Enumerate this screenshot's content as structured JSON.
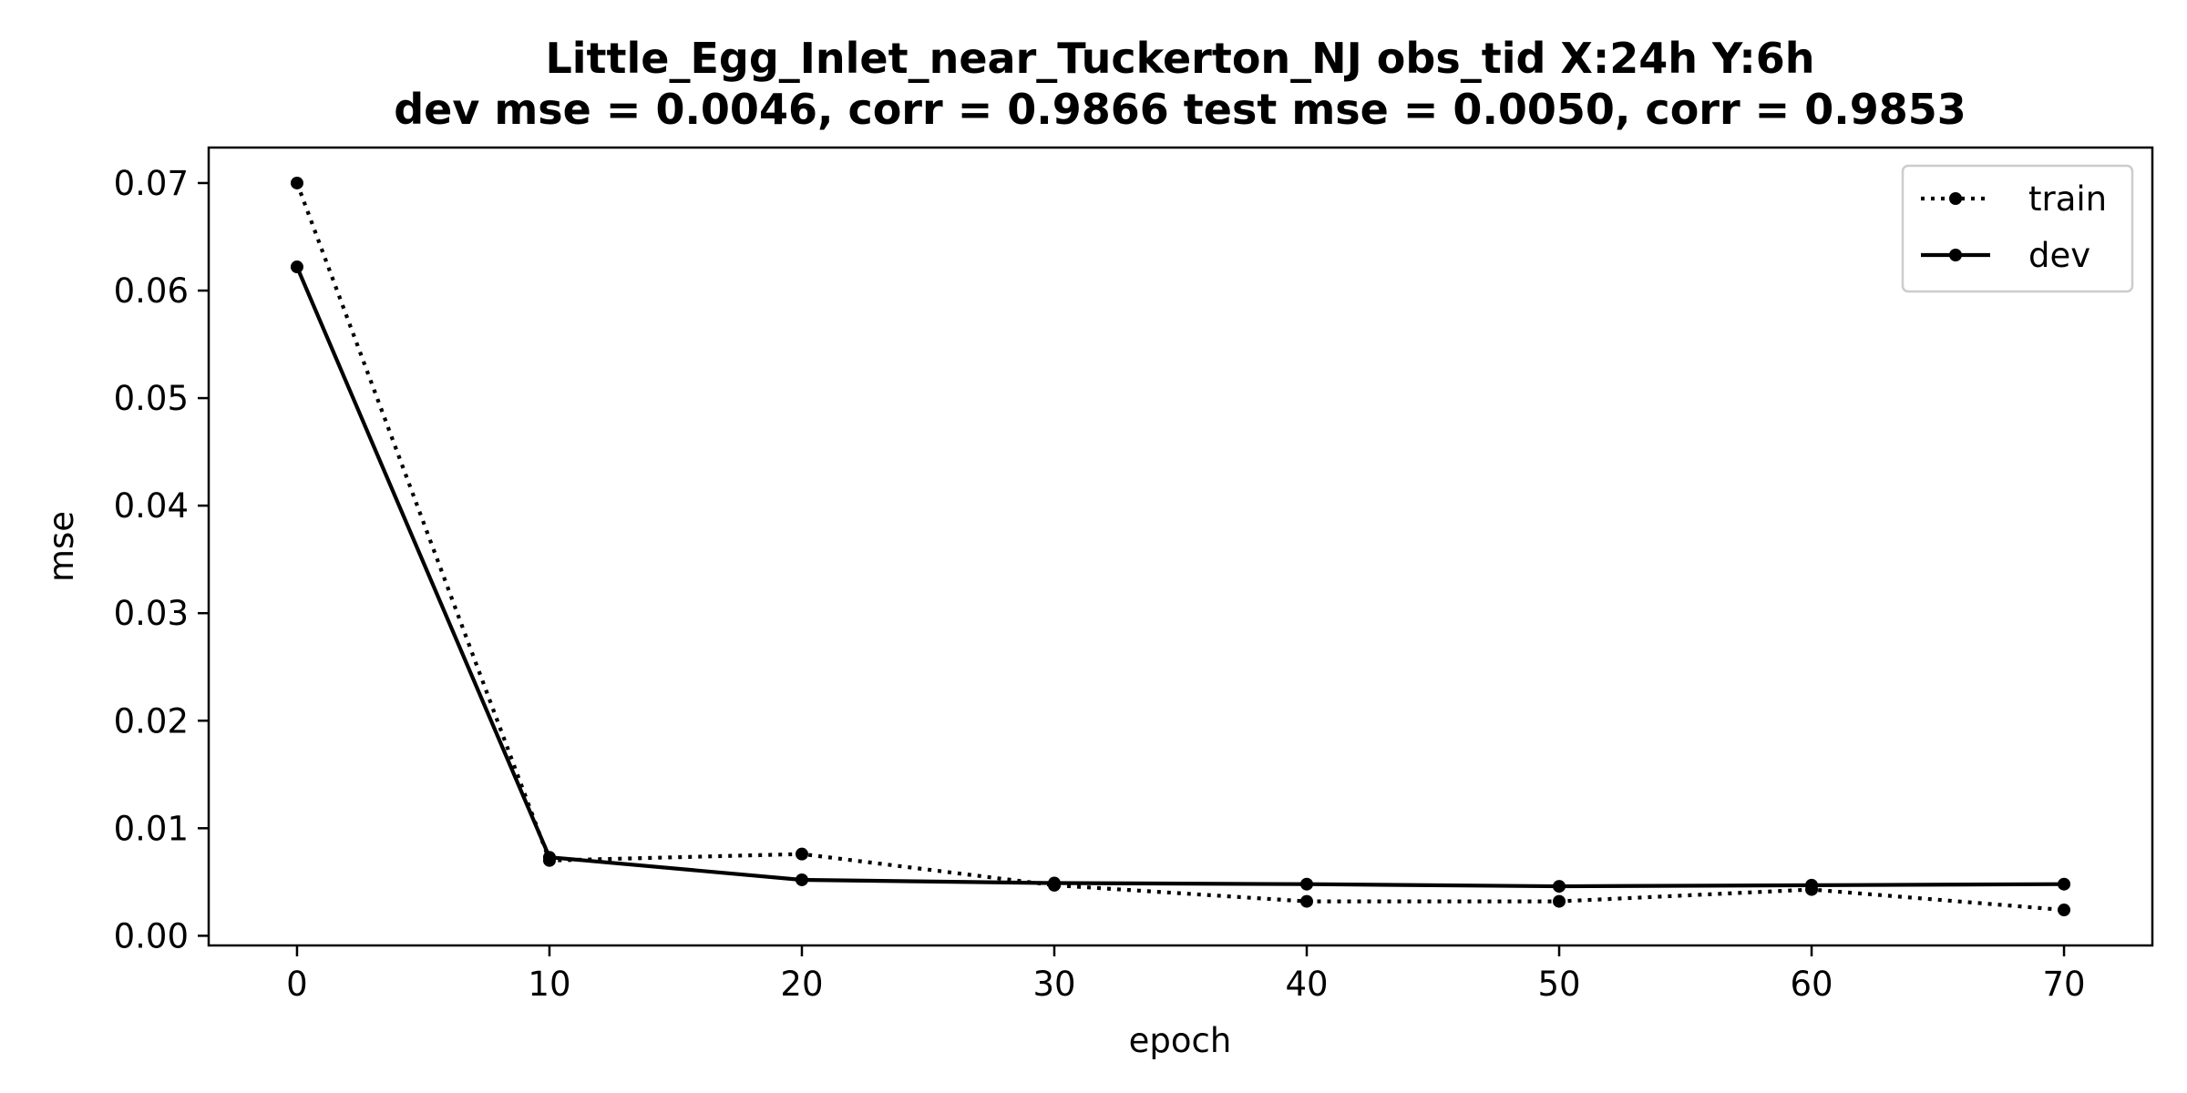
{
  "chart_data": {
    "type": "line",
    "title_line1": "Little_Egg_Inlet_near_Tuckerton_NJ   obs_tid   X:24h   Y:6h",
    "title_line2": "dev mse = 0.0046, corr = 0.9866   test mse = 0.0050, corr = 0.9853",
    "xlabel": "epoch",
    "ylabel": "mse",
    "xlim": [
      -3.5,
      73.5
    ],
    "ylim": [
      -0.0009,
      0.0733
    ],
    "xticks": [
      0,
      10,
      20,
      30,
      40,
      50,
      60,
      70
    ],
    "xtick_labels": [
      "0",
      "10",
      "20",
      "30",
      "40",
      "50",
      "60",
      "70"
    ],
    "yticks": [
      0.0,
      0.01,
      0.02,
      0.03,
      0.04,
      0.05,
      0.06,
      0.07
    ],
    "ytick_labels": [
      "0.00",
      "0.01",
      "0.02",
      "0.03",
      "0.04",
      "0.05",
      "0.06",
      "0.07"
    ],
    "legend_position": "top-right",
    "grid": false,
    "x": [
      0,
      10,
      20,
      30,
      40,
      50,
      60,
      70
    ],
    "series": [
      {
        "name": "train",
        "line_style": "dotted",
        "color": "#000000",
        "values": [
          0.07,
          0.007,
          0.0076,
          0.0047,
          0.0032,
          0.0032,
          0.0043,
          0.0024
        ]
      },
      {
        "name": "dev",
        "line_style": "solid",
        "color": "#000000",
        "values": [
          0.0622,
          0.0073,
          0.0052,
          0.0049,
          0.0048,
          0.0046,
          0.0047,
          0.0048
        ]
      }
    ]
  }
}
